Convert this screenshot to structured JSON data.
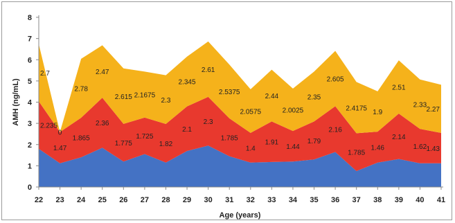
{
  "chart_data": {
    "type": "area",
    "stacked": true,
    "xlabel": "Age (years)",
    "ylabel": "AMH (ng/mL)",
    "ylim": [
      0,
      8
    ],
    "yticks": [
      0,
      1,
      2,
      3,
      4,
      5,
      6,
      7,
      8
    ],
    "categories": [
      "22",
      "23",
      "24",
      "25",
      "26",
      "27",
      "28",
      "29",
      "30",
      "31",
      "32",
      "33",
      "34",
      "35",
      "36",
      "37",
      "38",
      "39",
      "40",
      "41"
    ],
    "grid": false,
    "legend": "none",
    "series": [
      {
        "color": "#4472c4",
        "values": [
          1.8,
          1.12,
          1.4,
          1.85,
          1.2,
          1.55,
          1.15,
          1.7,
          1.95,
          1.45,
          1.15,
          1.18,
          1.2,
          1.3,
          1.65,
          0.75,
          1.15,
          1.32,
          1.12,
          1.12
        ]
      },
      {
        "color": "#e8392e",
        "values": [
          2.235,
          1.47,
          1.865,
          2.36,
          1.775,
          1.725,
          1.82,
          2.1,
          2.3,
          1.785,
          1.4,
          1.91,
          1.44,
          1.79,
          2.16,
          1.785,
          1.46,
          2.14,
          1.62,
          1.43
        ]
      },
      {
        "color": "#f5b21b",
        "values": [
          2.7,
          0.0,
          2.78,
          2.47,
          2.615,
          2.1675,
          2.3,
          2.345,
          2.61,
          2.5375,
          2.0575,
          2.44,
          2.0025,
          2.35,
          2.605,
          2.4175,
          1.9,
          2.51,
          2.33,
          2.27
        ]
      }
    ],
    "data_labels": {
      "series_1": [
        "2.235",
        "1.47",
        "1.865",
        "2.36",
        "1.775",
        "1.725",
        "1.82",
        "2.1",
        "2.3",
        "1.785",
        "1.4",
        "1.91",
        "1.44",
        "1.79",
        "2.16",
        "1.785",
        "1.46",
        "2.14",
        "1.62",
        "1.43"
      ],
      "series_2": [
        "2.7",
        "0",
        "2.78",
        "2.47",
        "2.615",
        "2.1675",
        "2.3",
        "2.345",
        "2.61",
        "2.5375",
        "2.0575",
        "2.44",
        "2.0025",
        "2.35",
        "2.605",
        "2.4175",
        "1.9",
        "2.51",
        "2.33",
        "2.27"
      ]
    }
  }
}
